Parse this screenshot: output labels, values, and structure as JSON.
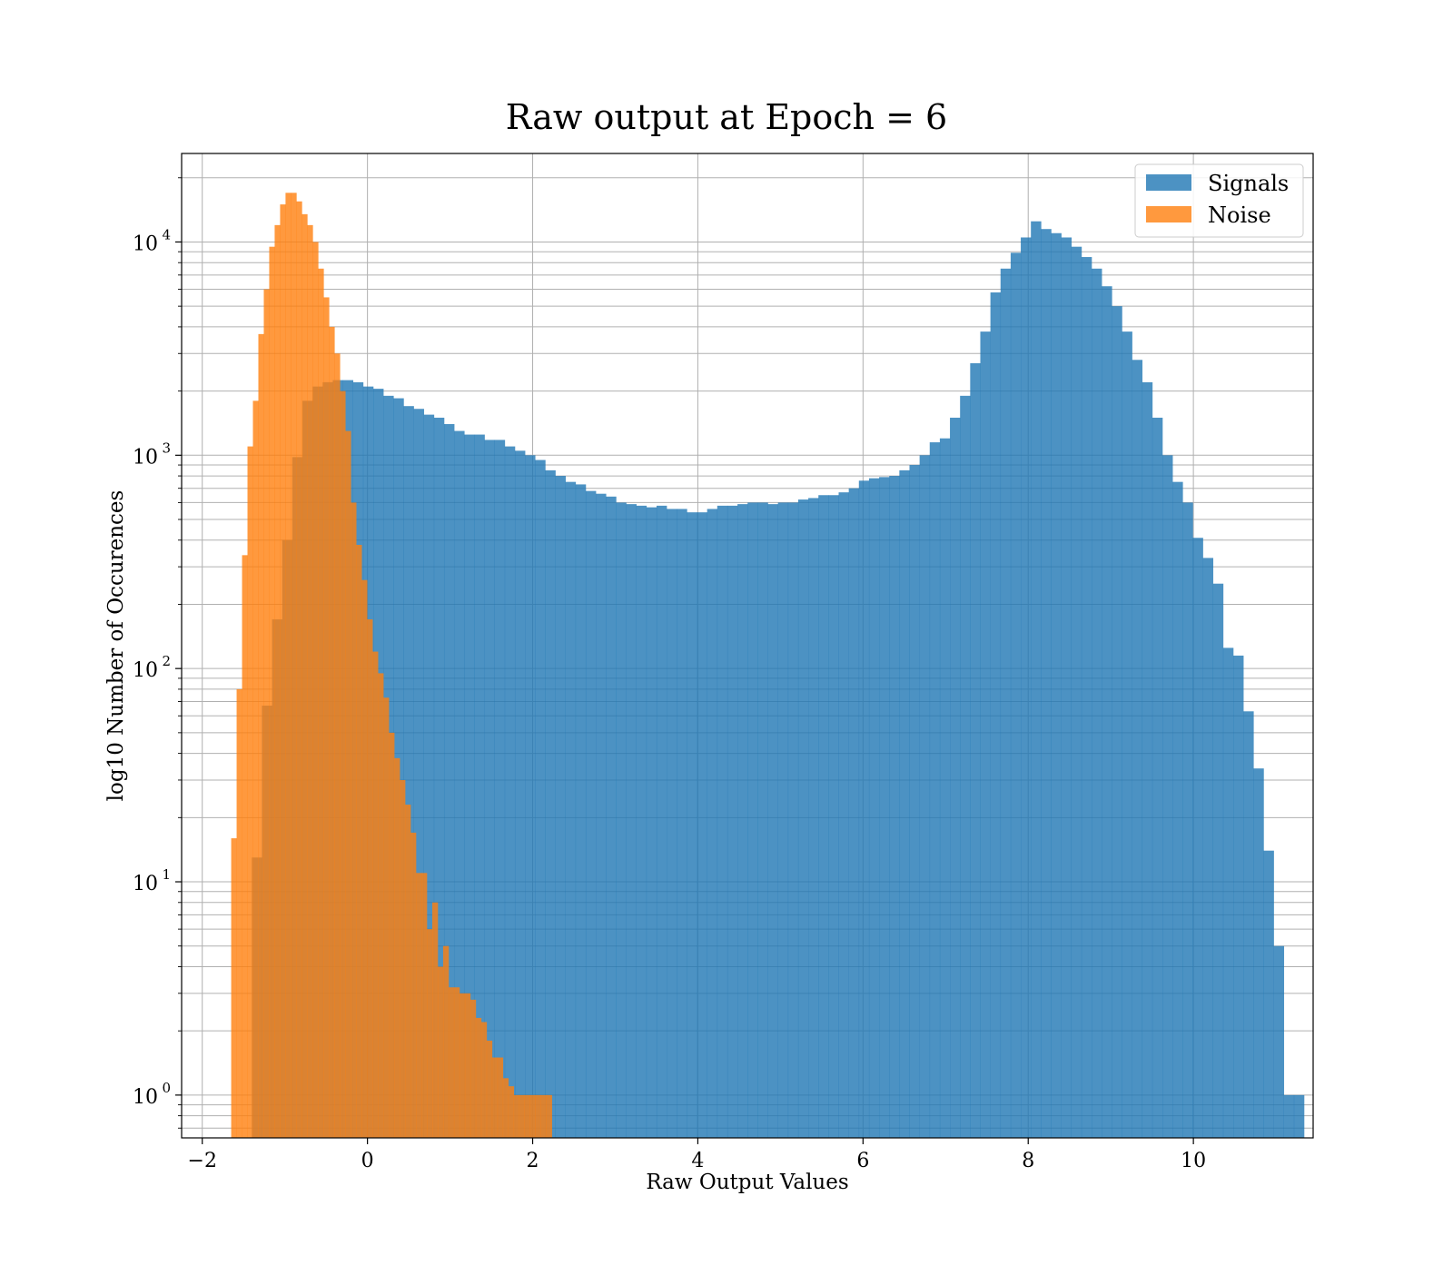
{
  "chart_data": {
    "type": "bar",
    "title": "Raw output at Epoch = 6",
    "xlabel": "Raw Output Values",
    "ylabel": "log10 Number of Occurences",
    "xlim": [
      -2.25,
      11.45
    ],
    "ylim": [
      0.63,
      26000
    ],
    "yscale": "log",
    "grid": true,
    "legend_position": "top-right",
    "x_ticks": [
      -2,
      0,
      2,
      4,
      6,
      8,
      10
    ],
    "x_tick_labels": [
      "−2",
      "0",
      "2",
      "4",
      "6",
      "8",
      "10"
    ],
    "y_ticks": [
      1,
      10,
      100,
      1000,
      10000
    ],
    "y_tick_base": "10",
    "y_tick_exponents": [
      "0",
      "1",
      "2",
      "3",
      "4"
    ],
    "colors": {
      "Signals": "#1f77b4",
      "Noise": "#ff7f0e"
    },
    "series": [
      {
        "name": "Signals",
        "x_start": -1.4,
        "bin_width": 0.1225,
        "values": [
          13,
          67,
          170,
          400,
          980,
          1800,
          2100,
          2200,
          2250,
          2250,
          2200,
          2100,
          2050,
          1900,
          1850,
          1700,
          1650,
          1550,
          1500,
          1400,
          1300,
          1250,
          1250,
          1180,
          1180,
          1100,
          1050,
          1000,
          950,
          850,
          800,
          750,
          730,
          680,
          660,
          640,
          600,
          590,
          580,
          570,
          580,
          560,
          560,
          540,
          540,
          560,
          580,
          580,
          590,
          600,
          600,
          590,
          600,
          600,
          620,
          630,
          650,
          650,
          670,
          700,
          760,
          780,
          790,
          800,
          850,
          900,
          1000,
          1150,
          1200,
          1500,
          1900,
          2700,
          3800,
          5800,
          7500,
          8900,
          10500,
          12500,
          11500,
          11000,
          10500,
          9500,
          8500,
          7500,
          6200,
          5000,
          3800,
          2800,
          2200,
          1500,
          1000,
          750,
          600,
          410,
          330,
          250,
          125,
          115,
          63,
          34,
          14,
          5,
          1,
          1
        ]
      },
      {
        "name": "Noise",
        "x_start": -1.65,
        "bin_width": 0.0658,
        "values": [
          16,
          80,
          340,
          1100,
          1800,
          3700,
          6000,
          9500,
          12000,
          15000,
          17000,
          17000,
          15500,
          13500,
          12000,
          10000,
          7500,
          5500,
          4000,
          3000,
          2000,
          1300,
          600,
          380,
          260,
          170,
          120,
          95,
          73,
          50,
          38,
          30,
          23,
          17,
          11,
          11,
          6,
          8,
          4,
          5,
          3.2,
          3.2,
          3,
          3,
          2.8,
          2.3,
          2.2,
          1.8,
          1.5,
          1.5,
          1.2,
          1.1,
          1,
          1,
          1,
          1,
          1,
          1,
          1
        ]
      }
    ]
  }
}
